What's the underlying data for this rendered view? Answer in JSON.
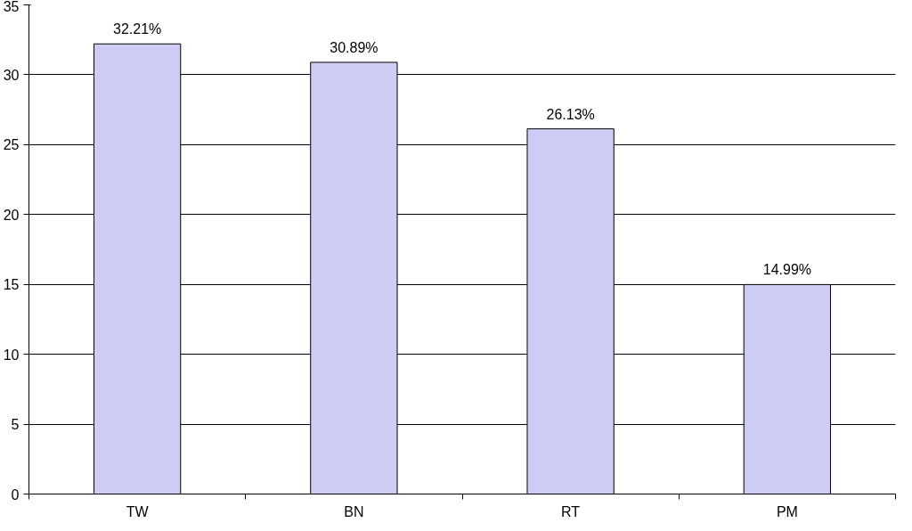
{
  "chart_data": {
    "type": "bar",
    "categories": [
      "TW",
      "BN",
      "RT",
      "PM"
    ],
    "values": [
      32.21,
      30.89,
      26.13,
      14.99
    ],
    "value_labels": [
      "32.21%",
      "30.89%",
      "26.13%",
      "14.99%"
    ],
    "color": "#ccccf4",
    "ylim": [
      0,
      35
    ],
    "yticks": [
      0,
      5,
      10,
      15,
      20,
      25,
      30,
      35
    ],
    "grid": "y"
  }
}
